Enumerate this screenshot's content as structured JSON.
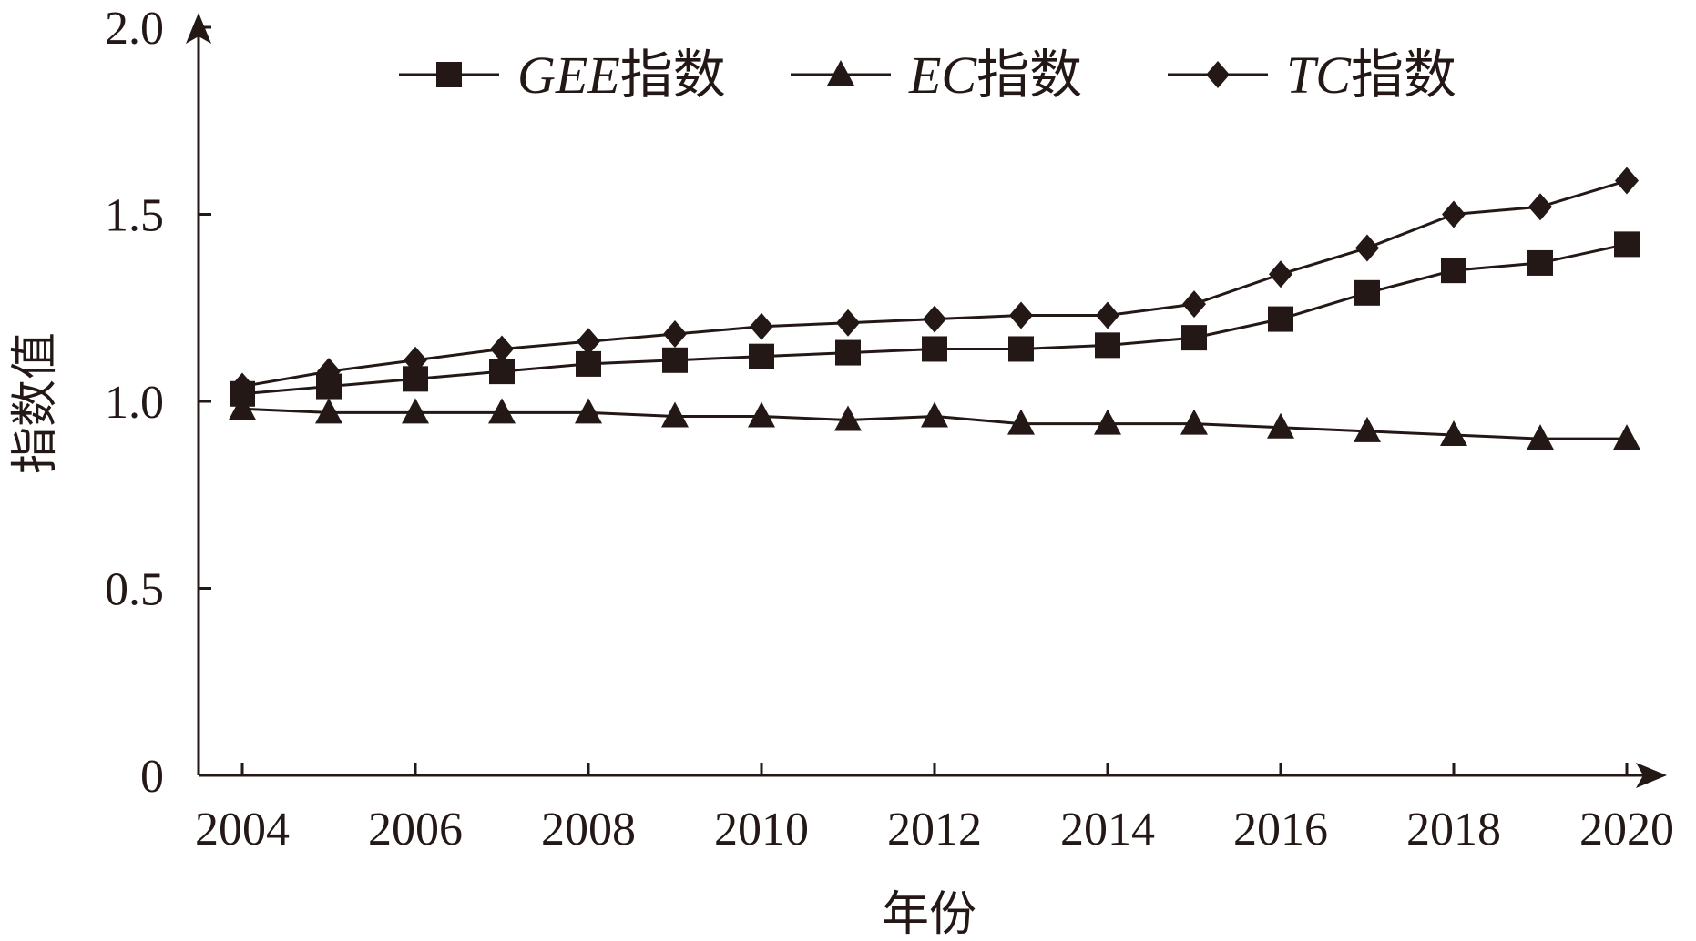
{
  "chart_data": {
    "type": "line",
    "xlabel": "年份",
    "ylabel": "指数值",
    "xlim": [
      2004,
      2020
    ],
    "ylim": [
      0,
      2.0
    ],
    "x": [
      2004,
      2005,
      2006,
      2007,
      2008,
      2009,
      2010,
      2011,
      2012,
      2013,
      2014,
      2015,
      2016,
      2017,
      2018,
      2019,
      2020
    ],
    "x_ticks": [
      "2004",
      "2006",
      "2008",
      "2010",
      "2012",
      "2014",
      "2016",
      "2018",
      "2020"
    ],
    "x_tick_values": [
      2004,
      2006,
      2008,
      2010,
      2012,
      2014,
      2016,
      2018,
      2020
    ],
    "y_ticks": [
      "0",
      "0.5",
      "1.0",
      "1.5",
      "2.0"
    ],
    "y_tick_values": [
      0,
      0.5,
      1.0,
      1.5,
      2.0
    ],
    "grid": false,
    "legend_position": "top",
    "series": [
      {
        "name_italic": "GEE",
        "name_suffix": "指数",
        "marker": "square",
        "values": [
          1.02,
          1.04,
          1.06,
          1.08,
          1.1,
          1.11,
          1.12,
          1.13,
          1.14,
          1.14,
          1.15,
          1.17,
          1.22,
          1.29,
          1.35,
          1.37,
          1.42
        ]
      },
      {
        "name_italic": "EC",
        "name_suffix": "指数",
        "marker": "triangle",
        "values": [
          0.98,
          0.97,
          0.97,
          0.97,
          0.97,
          0.96,
          0.96,
          0.95,
          0.96,
          0.94,
          0.94,
          0.94,
          0.93,
          0.92,
          0.91,
          0.9,
          0.9
        ]
      },
      {
        "name_italic": "TC",
        "name_suffix": "指数",
        "marker": "diamond",
        "values": [
          1.04,
          1.08,
          1.11,
          1.14,
          1.16,
          1.18,
          1.2,
          1.21,
          1.22,
          1.23,
          1.23,
          1.26,
          1.34,
          1.41,
          1.5,
          1.52,
          1.59
        ]
      }
    ]
  }
}
